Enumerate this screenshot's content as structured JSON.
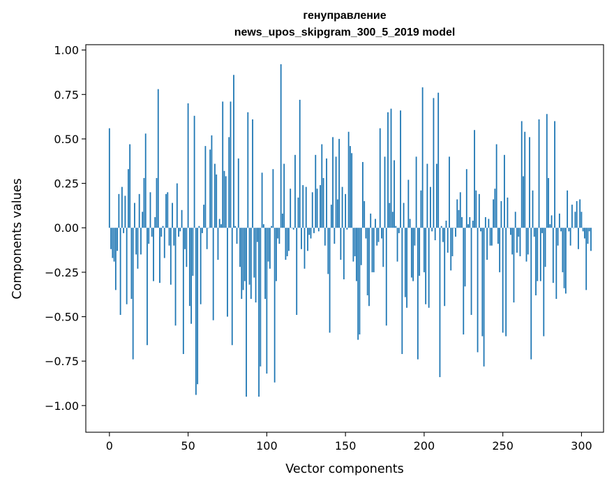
{
  "chart_data": {
    "type": "bar",
    "title_lines": [
      "генуправление",
      "news_upos_skipgram_300_5_2019 model"
    ],
    "xlabel": "Vector components",
    "ylabel": "Components values",
    "xlim": [
      -15,
      314
    ],
    "ylim": [
      -1.15,
      1.03
    ],
    "xticks": [
      0,
      50,
      100,
      150,
      200,
      250,
      300
    ],
    "yticks": [
      -1.0,
      -0.75,
      -0.5,
      -0.25,
      0.0,
      0.25,
      0.5,
      0.75,
      1.0
    ],
    "ytick_labels": [
      "−1.00",
      "−0.75",
      "−0.50",
      "−0.25",
      "0.00",
      "0.25",
      "0.50",
      "0.75",
      "1.00"
    ],
    "bar_color": "#1f77b4",
    "values": [
      0.56,
      -0.12,
      -0.17,
      -0.19,
      -0.35,
      -0.13,
      0.19,
      -0.49,
      0.23,
      -0.03,
      0.18,
      -0.43,
      0.33,
      0.47,
      -0.4,
      -0.74,
      0.14,
      -0.15,
      -0.23,
      0.19,
      -0.15,
      0.09,
      0.28,
      0.53,
      -0.66,
      -0.09,
      0.2,
      -0.05,
      -0.3,
      0.06,
      0.28,
      0.78,
      -0.31,
      -0.05,
      0.01,
      -0.17,
      0.19,
      0.2,
      -0.1,
      -0.32,
      0.14,
      -0.1,
      -0.55,
      0.25,
      -0.05,
      -0.02,
      0.1,
      -0.71,
      -0.12,
      -0.22,
      0.7,
      -0.44,
      -0.54,
      -0.27,
      0.63,
      -0.94,
      -0.88,
      0.01,
      -0.43,
      -0.03,
      0.13,
      0.46,
      -0.12,
      0.0,
      0.44,
      0.52,
      -0.52,
      0.36,
      0.3,
      -0.18,
      0.05,
      0.02,
      0.71,
      0.32,
      0.29,
      -0.5,
      0.51,
      0.71,
      -0.66,
      0.86,
      0.01,
      -0.09,
      0.39,
      -0.22,
      -0.4,
      -0.35,
      -0.3,
      -0.95,
      0.65,
      -0.32,
      -0.4,
      0.61,
      -0.28,
      -0.42,
      -0.08,
      -0.95,
      -0.78,
      0.31,
      0.02,
      -0.4,
      -0.82,
      -0.19,
      -0.23,
      0.01,
      0.33,
      -0.87,
      -0.3,
      -0.06,
      -0.09,
      0.92,
      0.08,
      0.36,
      -0.18,
      -0.16,
      -0.13,
      0.22,
      0.0,
      -0.01,
      0.41,
      -0.49,
      0.17,
      0.72,
      -0.12,
      0.24,
      -0.23,
      0.23,
      -0.13,
      -0.04,
      -0.06,
      0.2,
      -0.03,
      0.41,
      0.22,
      -0.02,
      0.24,
      0.47,
      0.28,
      -0.1,
      0.39,
      -0.26,
      -0.59,
      0.13,
      0.51,
      -0.09,
      0.4,
      0.16,
      0.5,
      -0.18,
      0.23,
      -0.29,
      0.19,
      -0.01,
      0.54,
      0.46,
      0.42,
      -0.19,
      -0.16,
      -0.3,
      -0.63,
      -0.6,
      -0.21,
      0.37,
      0.15,
      -0.06,
      -0.38,
      -0.44,
      0.08,
      -0.25,
      -0.25,
      0.05,
      -0.1,
      -0.08,
      0.56,
      -0.06,
      -0.22,
      0.4,
      -0.55,
      0.65,
      0.14,
      0.67,
      0.09,
      0.38,
      0.01,
      -0.19,
      -0.03,
      0.66,
      -0.71,
      0.14,
      -0.39,
      -0.45,
      0.27,
      0.05,
      -0.28,
      -0.3,
      -0.1,
      0.4,
      -0.74,
      -0.27,
      0.21,
      0.79,
      -0.25,
      -0.43,
      0.36,
      -0.45,
      0.23,
      -0.02,
      0.73,
      -0.07,
      0.36,
      0.76,
      -0.84,
      0.01,
      -0.08,
      -0.44,
      0.04,
      -0.14,
      0.4,
      -0.24,
      -0.16,
      0.0,
      -0.05,
      0.16,
      0.1,
      0.2,
      0.06,
      -0.6,
      -0.33,
      0.33,
      0.02,
      0.06,
      -0.49,
      0.04,
      0.55,
      0.21,
      -0.7,
      0.19,
      -0.02,
      -0.61,
      -0.78,
      0.06,
      -0.18,
      0.05,
      -0.1,
      -0.1,
      0.16,
      0.22,
      0.47,
      -0.09,
      -0.25,
      0.15,
      -0.59,
      0.41,
      -0.61,
      0.17,
      0.0,
      -0.04,
      -0.15,
      -0.42,
      0.09,
      -0.14,
      -0.05,
      -0.16,
      0.6,
      0.29,
      0.54,
      -0.19,
      -0.15,
      0.51,
      -0.74,
      0.21,
      -0.05,
      -0.38,
      -0.3,
      0.61,
      -0.3,
      -0.03,
      -0.61,
      -0.22,
      0.64,
      0.28,
      0.02,
      0.07,
      -0.31,
      0.6,
      -0.4,
      -0.1,
      0.08,
      -0.02,
      -0.25,
      -0.34,
      -0.37,
      0.21,
      -0.02,
      -0.1,
      0.13,
      0.0,
      0.09,
      0.15,
      -0.12,
      0.16,
      0.09,
      -0.02,
      -0.06,
      -0.35,
      -0.09,
      -0.02,
      -0.13
    ]
  }
}
